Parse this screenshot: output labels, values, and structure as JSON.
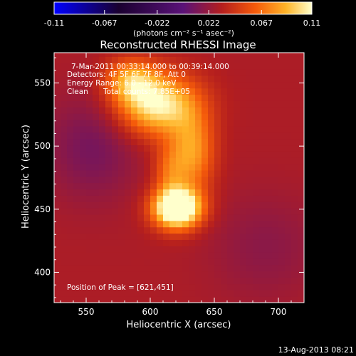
{
  "chart_data": {
    "type": "heatmap",
    "title": "Reconstructed RHESSI Image",
    "xlabel": "Heliocentric X (arcsec)",
    "ylabel": "Heliocentric Y (arcsec)",
    "xlim": [
      525,
      720
    ],
    "ylim": [
      376,
      574
    ],
    "x_ticks": [
      550,
      600,
      650,
      700
    ],
    "y_ticks": [
      400,
      450,
      500,
      550
    ],
    "colorbar": {
      "range": [
        -0.11,
        0.11
      ],
      "ticks": [
        "-0.11",
        "-0.067",
        "-0.022",
        "0.022",
        "0.067",
        "0.11"
      ],
      "tick_values": [
        -0.11,
        -0.067,
        -0.022,
        0.022,
        0.067,
        0.11
      ],
      "unit_label": "(photons cm⁻² s⁻¹ asec⁻²)"
    },
    "annotations": {
      "time": "7-Mar-2011 00:33:14.000 to 00:39:14.000",
      "detectors": "Detectors: 4F 5F 6F 7F 8F, Att 0",
      "energy": "Energy Range: 6.0 - 12.0 keV",
      "clean": "Clean",
      "counts": "Total counts: 7.85E+05",
      "peak": "Position of Peak = [621,451]"
    },
    "peak": [
      621,
      451
    ],
    "sources": [
      {
        "x": 621,
        "y": 451,
        "sx": 13,
        "sy": 11,
        "amp": 0.12
      },
      {
        "x": 606,
        "y": 533,
        "sx": 22,
        "sy": 17,
        "amp": 0.078
      },
      {
        "x": 633,
        "y": 495,
        "sx": 12,
        "sy": 22,
        "amp": 0.05
      },
      {
        "x": 585,
        "y": 552,
        "sx": 14,
        "sy": 12,
        "amp": 0.05
      },
      {
        "x": 615,
        "y": 480,
        "sx": 9,
        "sy": 15,
        "amp": 0.03
      },
      {
        "x": 555,
        "y": 500,
        "sx": 25,
        "sy": 30,
        "amp": -0.02
      },
      {
        "x": 690,
        "y": 420,
        "sx": 30,
        "sy": 30,
        "amp": -0.012
      }
    ],
    "background": 0.03,
    "footer_date": "13-Aug-2013 08:21"
  }
}
